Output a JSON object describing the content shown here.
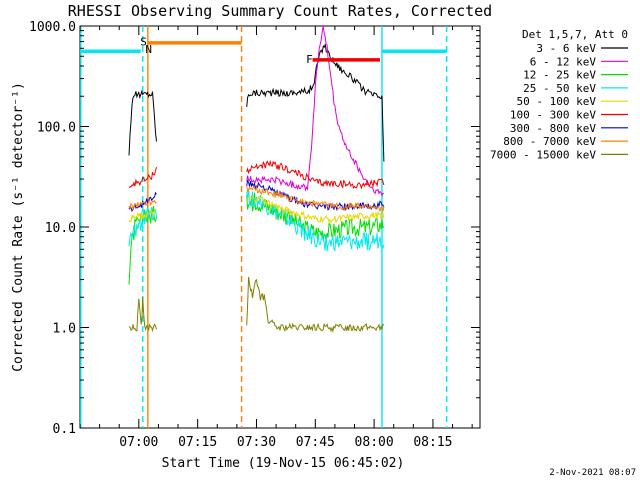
{
  "chart_data": {
    "type": "line",
    "title": "RHESSI Observing Summary Count Rates, Corrected",
    "xlabel": "Start Time (19-Nov-15 06:45:02)",
    "ylabel": "Corrected Count Rate (s⁻¹ detector⁻¹)",
    "y_scale": "log",
    "ylim": [
      0.1,
      1000
    ],
    "xlim_minutes_after_start": [
      0,
      102
    ],
    "x_tick_labels": [
      "07:00",
      "07:15",
      "07:30",
      "07:45",
      "08:00",
      "08:15"
    ],
    "x_tick_minutes": [
      15,
      30,
      45,
      60,
      75,
      90
    ],
    "y_tick_labels": [
      "0.1",
      "1.0",
      "10.0",
      "100.0",
      "1000.0"
    ],
    "y_tick_values": [
      0.1,
      1,
      10,
      100,
      1000
    ],
    "legend": {
      "header": "Det 1,5,7, Att 0",
      "position": "right",
      "entries": [
        {
          "label": "3 - 6 keV",
          "color": "#000000"
        },
        {
          "label": "6 - 12 keV",
          "color": "#e000e0"
        },
        {
          "label": "12 - 25 keV",
          "color": "#00e000"
        },
        {
          "label": "25 - 50 keV",
          "color": "#00e8f0"
        },
        {
          "label": "50 - 100 keV",
          "color": "#e8d800"
        },
        {
          "label": "100 - 300 keV",
          "color": "#f00000"
        },
        {
          "label": "300 - 800 keV",
          "color": "#0000d0"
        },
        {
          "label": "800 - 7000 keV",
          "color": "#ff8000"
        },
        {
          "label": "7000 - 15000 keV",
          "color": "#808000"
        }
      ]
    },
    "segments_minutes": [
      [
        12.5,
        19.5
      ],
      [
        42.5,
        77.5
      ]
    ],
    "series": [
      {
        "name": "3 - 6 keV",
        "color": "#000000",
        "points": [
          [
            12.5,
            55
          ],
          [
            13,
            120
          ],
          [
            13.5,
            205
          ],
          [
            16,
            210
          ],
          [
            18.5,
            212
          ],
          [
            19.5,
            70
          ],
          null,
          [
            42.5,
            160
          ],
          [
            43,
            215
          ],
          [
            48,
            218
          ],
          [
            53,
            215
          ],
          [
            58,
            225
          ],
          [
            59.5,
            250
          ],
          [
            60.5,
            420
          ],
          [
            61.5,
            560
          ],
          [
            62.3,
            650
          ],
          [
            63.5,
            520
          ],
          [
            65,
            430
          ],
          [
            67,
            360
          ],
          [
            70,
            290
          ],
          [
            72,
            235
          ],
          [
            74,
            210
          ],
          [
            76,
            200
          ],
          [
            77,
            190
          ],
          [
            77.5,
            45
          ]
        ]
      },
      {
        "name": "6 - 12 keV",
        "color": "#e000e0",
        "points": [
          [
            42.5,
            30
          ],
          [
            50,
            29
          ],
          [
            55,
            26
          ],
          [
            58,
            25
          ],
          [
            59,
            60
          ],
          [
            60,
            250
          ],
          [
            61,
            600
          ],
          [
            62,
            950
          ],
          [
            63,
            600
          ],
          [
            64,
            300
          ],
          [
            65,
            150
          ],
          [
            66,
            100
          ],
          [
            68,
            60
          ],
          [
            70,
            45
          ],
          [
            72,
            32
          ],
          [
            74,
            25
          ],
          [
            76,
            22
          ],
          [
            77.5,
            21
          ]
        ]
      },
      {
        "name": "12 - 25 keV",
        "color": "#00e000",
        "points": [
          [
            12.5,
            3
          ],
          [
            13,
            6
          ],
          [
            14,
            10
          ],
          [
            16,
            12
          ],
          [
            18,
            13
          ],
          [
            19.5,
            14
          ],
          null,
          [
            42.5,
            17
          ],
          [
            45,
            18
          ],
          [
            48,
            16
          ],
          [
            51,
            14
          ],
          [
            54,
            12
          ],
          [
            57,
            10
          ],
          [
            60,
            9
          ],
          [
            63,
            9
          ],
          [
            66,
            9.5
          ],
          [
            70,
            10
          ],
          [
            74,
            10
          ],
          [
            77.5,
            11
          ]
        ]
      },
      {
        "name": "25 - 50 keV",
        "color": "#00e8f0",
        "points": [
          [
            12.5,
            7
          ],
          [
            14,
            9
          ],
          [
            16,
            12
          ],
          [
            18,
            14
          ],
          [
            19.5,
            15
          ],
          null,
          [
            42.5,
            20
          ],
          [
            46,
            18
          ],
          [
            50,
            14
          ],
          [
            54,
            11
          ],
          [
            57,
            9
          ],
          [
            60,
            7.5
          ],
          [
            63,
            7
          ],
          [
            66,
            7
          ],
          [
            70,
            7
          ],
          [
            74,
            7.2
          ],
          [
            77.5,
            7.5
          ]
        ]
      },
      {
        "name": "50 - 100 keV",
        "color": "#e8d800",
        "points": [
          [
            12.5,
            12
          ],
          [
            16,
            13
          ],
          [
            19.5,
            14
          ],
          null,
          [
            42.5,
            19
          ],
          [
            46,
            19
          ],
          [
            50,
            16
          ],
          [
            54,
            14
          ],
          [
            57,
            13
          ],
          [
            60,
            12
          ],
          [
            66,
            12
          ],
          [
            70,
            12.5
          ],
          [
            74,
            13
          ],
          [
            77.5,
            13
          ]
        ]
      },
      {
        "name": "100 - 300 keV",
        "color": "#f00000",
        "points": [
          [
            12.5,
            25
          ],
          [
            14,
            27
          ],
          [
            16,
            29
          ],
          [
            18,
            31
          ],
          [
            19.5,
            38
          ],
          null,
          [
            42.5,
            36
          ],
          [
            45,
            40
          ],
          [
            48,
            42
          ],
          [
            51,
            40
          ],
          [
            54,
            36
          ],
          [
            57,
            32
          ],
          [
            60,
            28
          ],
          [
            63,
            27
          ],
          [
            66,
            27
          ],
          [
            70,
            26
          ],
          [
            74,
            27
          ],
          [
            77.5,
            28
          ]
        ]
      },
      {
        "name": "300 - 800 keV",
        "color": "#0000d0",
        "points": [
          [
            12.5,
            15
          ],
          [
            16,
            17
          ],
          [
            18,
            19
          ],
          [
            19.5,
            21
          ],
          null,
          [
            42.5,
            27
          ],
          [
            46,
            26
          ],
          [
            50,
            22
          ],
          [
            54,
            19
          ],
          [
            57,
            17
          ],
          [
            60,
            16
          ],
          [
            66,
            16
          ],
          [
            70,
            16
          ],
          [
            74,
            16
          ],
          [
            77.5,
            17
          ]
        ]
      },
      {
        "name": "800 - 7000 keV",
        "color": "#ff8000",
        "points": [
          [
            12.5,
            16
          ],
          [
            16,
            17
          ],
          [
            19.5,
            18
          ],
          null,
          [
            42.5,
            24
          ],
          [
            46,
            23
          ],
          [
            50,
            21
          ],
          [
            54,
            19
          ],
          [
            57,
            18
          ],
          [
            60,
            17
          ],
          [
            66,
            16
          ],
          [
            70,
            16
          ],
          [
            74,
            16
          ],
          [
            77.5,
            15
          ]
        ]
      },
      {
        "name": "7000 - 15000 keV",
        "color": "#808000",
        "points": [
          [
            12.5,
            1
          ],
          [
            14.5,
            1
          ],
          [
            15,
            2
          ],
          [
            15.6,
            1
          ],
          [
            16,
            2
          ],
          [
            16.5,
            1
          ],
          [
            19.5,
            1
          ],
          null,
          [
            42.5,
            1
          ],
          [
            43,
            3
          ],
          [
            44,
            2
          ],
          [
            45,
            3
          ],
          [
            46,
            2
          ],
          [
            47,
            2
          ],
          [
            48,
            1.2
          ],
          [
            50,
            1
          ],
          [
            55,
            1
          ],
          [
            60,
            1
          ],
          [
            65,
            1
          ],
          [
            70,
            1
          ],
          [
            77.5,
            1
          ]
        ]
      }
    ],
    "annotations": [
      {
        "text": "S",
        "color": "#ff8000",
        "x_minutes": 16.2,
        "y": 700
      },
      {
        "text": "N",
        "color": "#00c8e0",
        "x_minutes": 17.5,
        "y": 590
      },
      {
        "text": "F",
        "color": "#f00000",
        "x_minutes": 58.5,
        "y": 470
      }
    ],
    "bars": [
      {
        "kind": "saa",
        "color": "#00e8f0",
        "y": 560,
        "x_minutes": [
          0,
          15.5
        ]
      },
      {
        "kind": "saa",
        "color": "#00e8f0",
        "y": 560,
        "x_minutes": [
          77,
          93.5
        ]
      },
      {
        "kind": "night",
        "color": "#ff8000",
        "y": 680,
        "x_minutes": [
          17.3,
          41.2
        ]
      },
      {
        "kind": "flare",
        "color": "#f00000",
        "y": 460,
        "x_minutes": [
          59.3,
          76.5
        ]
      }
    ],
    "vlines": [
      {
        "color": "#00e8f0",
        "style": "solid",
        "x_minutes": 0.2
      },
      {
        "color": "#00e8f0",
        "style": "dashed",
        "x_minutes": 16.0
      },
      {
        "color": "#ff8000",
        "style": "solid",
        "x_minutes": 17.3
      },
      {
        "color": "#ff8000",
        "style": "dashed",
        "x_minutes": 41.2
      },
      {
        "color": "#00e8f0",
        "style": "solid",
        "x_minutes": 77.0
      },
      {
        "color": "#00e8f0",
        "style": "dashed",
        "x_minutes": 93.5
      }
    ]
  },
  "footer": {
    "timestamp": "2-Nov-2021 08:07"
  }
}
